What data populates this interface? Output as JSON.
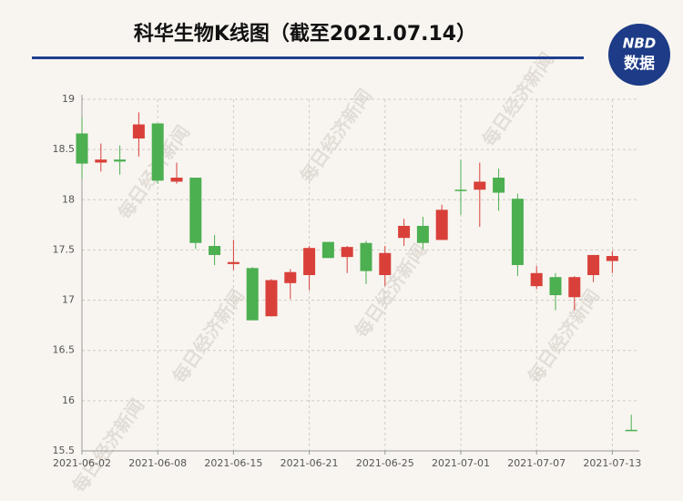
{
  "chart_data": {
    "type": "candlestick",
    "title": "科华生物K线图（截至2021.07.14）",
    "logo": {
      "top": "NBD",
      "bottom": "数据"
    },
    "watermark": "每日经济新闻",
    "categories": [
      "2021-06-02",
      null,
      null,
      null,
      "2021-06-08",
      null,
      null,
      null,
      "2021-06-15",
      null,
      null,
      null,
      "2021-06-21",
      null,
      null,
      null,
      "2021-06-25",
      null,
      null,
      null,
      "2021-07-01",
      null,
      null,
      null,
      "2021-07-07",
      null,
      null,
      null,
      "2021-07-13",
      null
    ],
    "open": [
      18.66,
      18.37,
      18.4,
      18.61,
      18.76,
      18.18,
      18.22,
      17.54,
      17.36,
      17.32,
      16.84,
      17.17,
      17.25,
      17.58,
      17.43,
      17.57,
      17.25,
      17.62,
      17.74,
      17.6,
      18.1,
      18.1,
      18.22,
      18.01,
      17.14,
      17.23,
      17.03,
      17.25,
      17.39,
      15.71
    ],
    "high": [
      18.82,
      18.56,
      18.54,
      18.87,
      18.76,
      18.37,
      18.22,
      17.65,
      17.6,
      17.33,
      17.21,
      17.31,
      17.54,
      17.58,
      17.54,
      17.59,
      17.54,
      17.81,
      17.83,
      17.95,
      18.4,
      18.37,
      18.31,
      18.06,
      17.34,
      17.27,
      17.24,
      17.45,
      17.49,
      15.86
    ],
    "low": [
      18.21,
      18.28,
      18.25,
      18.43,
      18.16,
      18.16,
      17.51,
      17.35,
      17.3,
      16.8,
      16.84,
      17.01,
      17.1,
      17.42,
      17.27,
      17.16,
      17.14,
      17.54,
      17.51,
      17.6,
      17.85,
      17.73,
      17.89,
      17.24,
      17.11,
      16.9,
      16.9,
      17.18,
      17.27,
      15.7
    ],
    "close": [
      18.36,
      18.4,
      18.38,
      18.75,
      18.19,
      18.22,
      17.57,
      17.45,
      17.38,
      16.8,
      17.2,
      17.28,
      17.52,
      17.42,
      17.53,
      17.29,
      17.47,
      17.74,
      17.57,
      17.9,
      18.09,
      18.18,
      18.07,
      17.35,
      17.27,
      17.05,
      17.23,
      17.45,
      17.44,
      15.7
    ],
    "up_color": "#d9403a",
    "down_color": "#4caf50",
    "ylim": [
      15.5,
      19
    ],
    "yticks": [
      15.5,
      16,
      16.5,
      17,
      17.5,
      18,
      18.5,
      19
    ],
    "grid": true
  }
}
